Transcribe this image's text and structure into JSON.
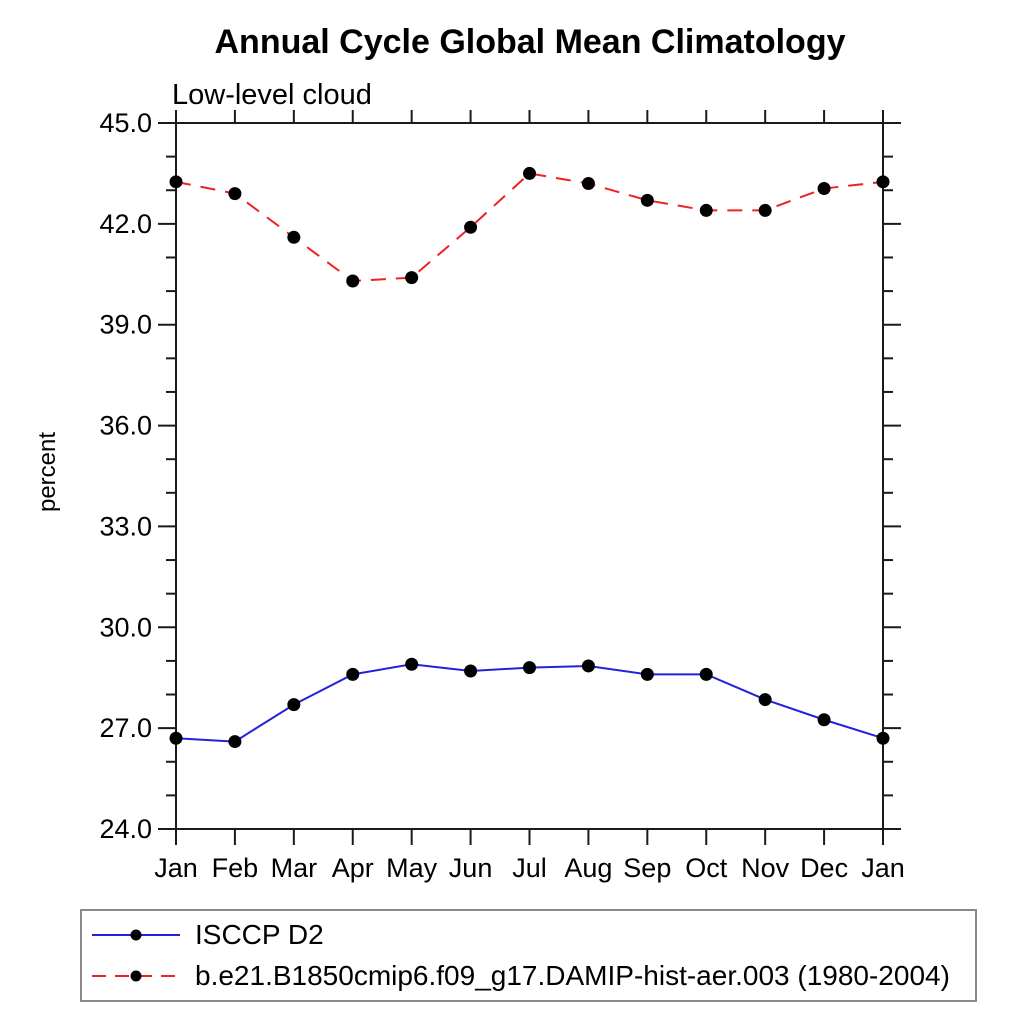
{
  "chart_data": {
    "type": "line",
    "title": "Annual Cycle Global Mean Climatology",
    "subtitle": "Low-level cloud",
    "ylabel": "percent",
    "xlabel": "",
    "categories": [
      "Jan",
      "Feb",
      "Mar",
      "Apr",
      "May",
      "Jun",
      "Jul",
      "Aug",
      "Sep",
      "Oct",
      "Nov",
      "Dec",
      "Jan"
    ],
    "ylim": [
      24.0,
      45.0
    ],
    "ytick_major_interval": 3.0,
    "ytick_minor_interval": 1.0,
    "ytick_labels": [
      "24.0",
      "27.0",
      "30.0",
      "33.0",
      "36.0",
      "39.0",
      "42.0",
      "45.0"
    ],
    "grid": false,
    "legend_position": "bottom-left-boxed",
    "axis_color": "#1a1a1a",
    "marker": {
      "shape": "circle",
      "color": "#000000"
    },
    "series": [
      {
        "name": "ISCCP D2",
        "color": "#2222dd",
        "line_style": "solid",
        "values": [
          26.7,
          26.6,
          27.7,
          28.6,
          28.9,
          28.7,
          28.8,
          28.85,
          28.6,
          28.6,
          27.85,
          27.25,
          26.7
        ]
      },
      {
        "name": "b.e21.B1850cmip6.f09_g17.DAMIP-hist-aer.003 (1980-2004)",
        "color": "#ee2222",
        "line_style": "dashed",
        "values": [
          43.25,
          42.9,
          41.6,
          40.3,
          40.4,
          41.9,
          43.5,
          43.2,
          42.7,
          42.4,
          42.4,
          43.05,
          43.25
        ]
      }
    ]
  }
}
